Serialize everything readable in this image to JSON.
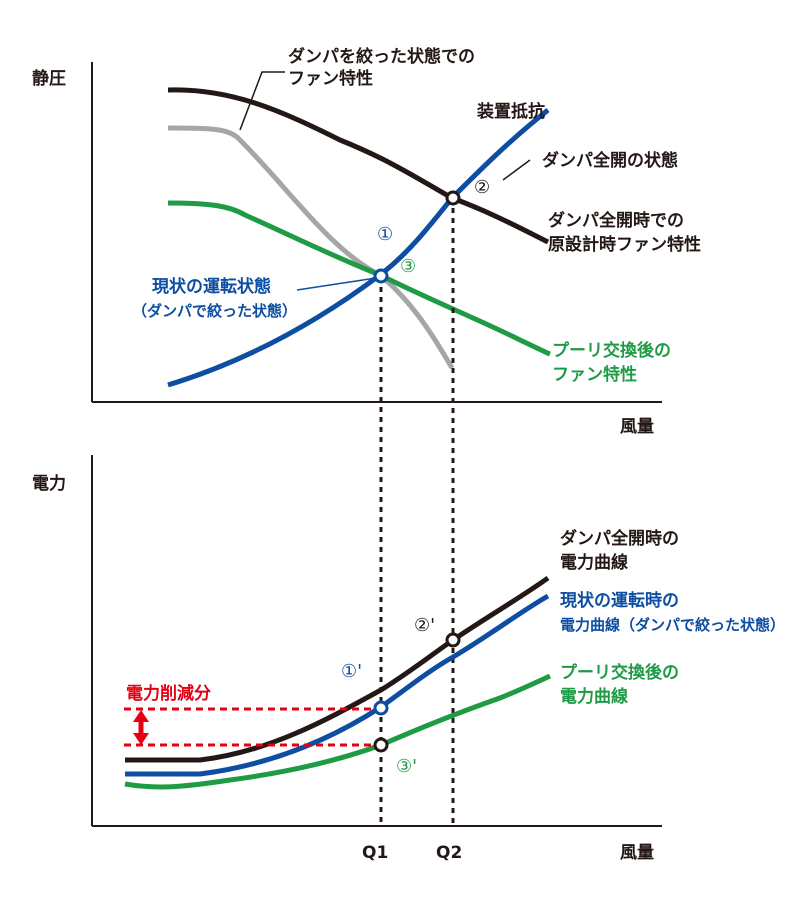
{
  "colors": {
    "black": "#231815",
    "gray": "#a6a6a6",
    "green": "#1e9b44",
    "blue": "#0d4ea2",
    "red": "#e60012"
  },
  "top": {
    "y_axis_label": "静圧",
    "x_axis_label": "風量",
    "label_damper_closed": [
      "ダンパを絞った状態での",
      "ファン特性"
    ],
    "label_resistance": "装置抵抗",
    "label_damper_open_state": "ダンパ全開の状態",
    "label_original_fan": [
      "ダンパ全開時での",
      "原設計時ファン特性"
    ],
    "label_current": [
      "現状の運転状態",
      "（ダンパで絞った状態）"
    ],
    "label_pulley": [
      "プーリ交換後の",
      "ファン特性"
    ],
    "point1": "①",
    "point2": "②",
    "point3": "③"
  },
  "bottom": {
    "y_axis_label": "電力",
    "x_axis_label": "風量",
    "label_black": [
      "ダンパ全開時の",
      "電力曲線"
    ],
    "label_blue": [
      "現状の運転時の",
      "電力曲線（ダンパで絞った状態）"
    ],
    "label_green": [
      "プーリ交換後の",
      "電力曲線"
    ],
    "label_reduction": "電力削減分",
    "point1p": "①'",
    "point2p": "②'",
    "point3p": "③'",
    "tick_q1": "Q1",
    "tick_q2": "Q2"
  }
}
